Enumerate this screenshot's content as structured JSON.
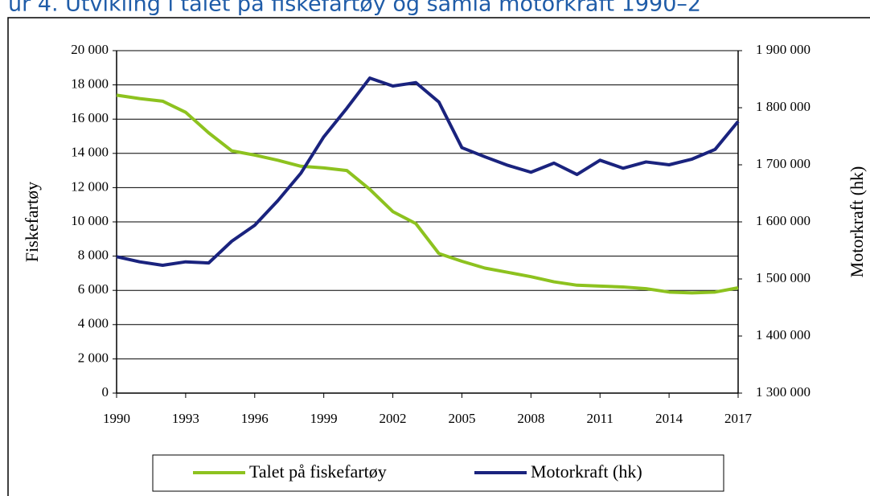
{
  "chart_data": {
    "type": "line",
    "title": "ur 4.    Utvikling i talet på fiskefartøy og samla motorkraft 1990–2",
    "y_label": "Fiskefartøy",
    "y2_label": "Motorkraft (hk)",
    "x": [
      1990,
      1991,
      1992,
      1993,
      1994,
      1995,
      1996,
      1997,
      1998,
      1999,
      2000,
      2001,
      2002,
      2003,
      2004,
      2005,
      2006,
      2007,
      2008,
      2009,
      2010,
      2011,
      2012,
      2013,
      2014,
      2015,
      2016,
      2017
    ],
    "xlim": [
      1990,
      2017
    ],
    "xticks": [
      1990,
      1993,
      1996,
      1999,
      2002,
      2005,
      2008,
      2011,
      2014,
      2017
    ],
    "ylim": [
      0,
      20000
    ],
    "yticks": [
      0,
      {
        "value": 2000,
        "label": "2 000"
      },
      {
        "value": 4000,
        "label": "4 000"
      },
      {
        "value": 6000,
        "label": "6 000"
      },
      {
        "value": 8000,
        "label": "8 000"
      },
      {
        "value": 10000,
        "label": "10 000"
      },
      {
        "value": 12000,
        "label": "12 000"
      },
      {
        "value": 14000,
        "label": "14 000"
      },
      {
        "value": 16000,
        "label": "16 000"
      },
      {
        "value": 18000,
        "label": "18 000"
      },
      {
        "value": 20000,
        "label": "20 000"
      }
    ],
    "y2lim": [
      1300000,
      1900000
    ],
    "y2ticks": [
      {
        "value": 1300000,
        "label": "1 300 000"
      },
      {
        "value": 1400000,
        "label": "1 400 000"
      },
      {
        "value": 1500000,
        "label": "1 500 000"
      },
      {
        "value": 1600000,
        "label": "1 600 000"
      },
      {
        "value": 1700000,
        "label": "1 700 000"
      },
      {
        "value": 1800000,
        "label": "1 800 000"
      },
      {
        "value": 1900000,
        "label": "1 900 000"
      }
    ],
    "grid": true,
    "legend": "bottom",
    "series": [
      {
        "name": "Talet på fiskefartøy",
        "color": "#8dc21f",
        "values": [
          17400,
          17200,
          17050,
          16400,
          15200,
          14150,
          13900,
          13600,
          13250,
          13150,
          13000,
          11900,
          10600,
          9900,
          8150,
          7700,
          7300,
          7050,
          6800,
          6500,
          6300,
          6250,
          6200,
          6100,
          5900,
          5850,
          5900,
          6150
        ]
      },
      {
        "name": "Motorkraft (hk)",
        "color": "#1a237e",
        "axis": "y2",
        "values": [
          1539000,
          1530000,
          1524000,
          1530000,
          1528000,
          1566000,
          1594000,
          1637000,
          1685000,
          1749000,
          1799000,
          1852000,
          1838000,
          1844000,
          1810000,
          1730000,
          1714000,
          1699000,
          1687000,
          1703000,
          1683000,
          1708000,
          1694000,
          1705000,
          1700000,
          1710000,
          1727000,
          1776000
        ]
      }
    ]
  }
}
